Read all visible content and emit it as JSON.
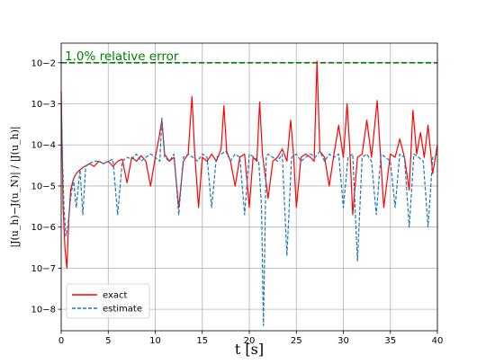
{
  "chart_data": {
    "type": "line",
    "xlabel": "t [s]",
    "ylabel": "|J(u_h)−J(u_N)| / |J(u_h)|",
    "xlim": [
      0,
      40
    ],
    "ylim": [
      3e-09,
      0.03
    ],
    "yscale": "log",
    "grid": true,
    "legend": "lower-left",
    "x_ticks": [
      "0",
      "5",
      "10",
      "15",
      "20",
      "25",
      "30",
      "35",
      "40"
    ],
    "y_ticks": [
      {
        "value": 1e-08,
        "label": "10−8"
      },
      {
        "value": 1e-07,
        "label": "10−7"
      },
      {
        "value": 1e-06,
        "label": "10−6"
      },
      {
        "value": 1e-05,
        "label": "10−5"
      },
      {
        "value": 0.0001,
        "label": "10−4"
      },
      {
        "value": 0.001,
        "label": "10−3"
      },
      {
        "value": 0.01,
        "label": "10−2"
      }
    ],
    "reference_line": {
      "label": "1.0% relative error",
      "y": 0.01,
      "color": "#008000"
    },
    "series": [
      {
        "name": "exact",
        "color": "#ff0000",
        "style": "solid",
        "x": [
          0,
          0.1,
          0.2,
          0.4,
          0.6,
          0.8,
          1.0,
          1.3,
          1.6,
          2.0,
          2.5,
          3.0,
          3.5,
          4.0,
          4.5,
          5.0,
          5.5,
          6.0,
          6.5,
          7.0,
          7.5,
          8.0,
          8.5,
          9.0,
          9.5,
          10.0,
          10.4,
          10.7,
          11.0,
          11.5,
          12.0,
          12.5,
          13.0,
          13.5,
          13.9,
          14.2,
          14.6,
          15.0,
          15.5,
          16.0,
          16.5,
          17.0,
          17.3,
          17.6,
          18.0,
          18.5,
          19.0,
          19.5,
          20.0,
          20.4,
          20.8,
          21.1,
          21.4,
          22.0,
          22.5,
          23.0,
          23.5,
          24.0,
          24.4,
          24.7,
          25.0,
          25.5,
          26.0,
          26.5,
          26.9,
          27.2,
          27.5,
          28.0,
          28.5,
          29.0,
          29.5,
          30.0,
          30.4,
          30.7,
          31.0,
          31.5,
          32.0,
          32.5,
          33.0,
          33.6,
          33.9,
          34.3,
          35.0,
          35.5,
          36.0,
          36.5,
          37.0,
          37.4,
          37.8,
          38.2,
          38.6,
          39.0,
          39.5,
          40.0
        ],
        "y": [
          0.002,
          0.0001,
          3e-06,
          3e-07,
          1e-07,
          1.5e-06,
          8e-06,
          1.5e-05,
          2e-05,
          2.5e-05,
          3e-05,
          3.5e-05,
          3e-05,
          4e-05,
          3.5e-05,
          4e-05,
          3e-05,
          4e-05,
          4.5e-05,
          1.2e-05,
          5e-05,
          4e-05,
          5.5e-05,
          4e-05,
          1e-05,
          5e-05,
          0.00015,
          0.0004,
          6e-05,
          4e-05,
          5e-05,
          3e-06,
          4e-05,
          6e-05,
          0.0015,
          6e-05,
          3e-06,
          5e-05,
          4e-05,
          6e-05,
          4e-05,
          8e-05,
          0.0009,
          7e-05,
          4e-05,
          1e-05,
          5e-05,
          6e-05,
          3e-06,
          5e-05,
          4e-05,
          0.0011,
          6e-05,
          5e-06,
          4e-05,
          5e-05,
          8e-05,
          4e-05,
          0.0004,
          6e-05,
          3e-06,
          5e-05,
          6e-05,
          5e-05,
          4e-05,
          0.011,
          7e-05,
          5e-05,
          1e-05,
          6e-05,
          0.0003,
          5e-05,
          0.001,
          7e-05,
          2e-06,
          5e-05,
          6e-05,
          0.0004,
          5e-05,
          0.0012,
          8e-05,
          3e-06,
          6e-05,
          5e-05,
          0.00014,
          5e-05,
          8e-06,
          0.0007,
          6e-05,
          0.0002,
          5e-05,
          0.0003,
          2e-05,
          0.0001
        ]
      },
      {
        "name": "estimate",
        "color": "#1f77b4",
        "style": "dashed",
        "x": [
          0,
          0.1,
          0.3,
          0.5,
          0.7,
          1.0,
          1.3,
          1.6,
          2.0,
          2.3,
          2.6,
          3.0,
          3.5,
          4.0,
          4.5,
          5.0,
          5.5,
          6.0,
          6.5,
          7.0,
          7.5,
          8.0,
          8.5,
          9.0,
          9.5,
          10.0,
          10.5,
          10.7,
          11.0,
          11.5,
          12.0,
          12.5,
          13.0,
          13.5,
          14.0,
          14.5,
          15.0,
          15.5,
          16.0,
          16.5,
          17.0,
          17.5,
          18.0,
          18.5,
          19.0,
          19.5,
          20.0,
          20.5,
          21.0,
          21.3,
          21.5,
          21.8,
          22.0,
          22.5,
          23.0,
          23.5,
          24.0,
          24.5,
          25.0,
          25.5,
          26.0,
          26.5,
          27.0,
          27.5,
          28.0,
          28.5,
          29.0,
          29.5,
          30.0,
          30.5,
          31.0,
          31.5,
          32.0,
          32.5,
          33.0,
          33.5,
          34.0,
          34.5,
          35.0,
          35.5,
          36.0,
          36.5,
          37.0,
          37.5,
          38.0,
          38.5,
          39.0,
          39.5,
          40.0
        ],
        "y": [
          0.001,
          0.0001,
          3e-06,
          6e-07,
          1e-06,
          5e-06,
          1.5e-05,
          3e-06,
          2.5e-05,
          2e-06,
          3e-05,
          3.5e-05,
          4e-05,
          4e-05,
          3.5e-05,
          4e-05,
          4.5e-05,
          2e-06,
          4e-05,
          5e-05,
          4.5e-05,
          6e-05,
          4e-05,
          5e-05,
          6e-05,
          5e-05,
          4e-05,
          0.00045,
          5e-05,
          4e-05,
          6e-05,
          2e-06,
          5e-05,
          6e-05,
          5e-05,
          4e-05,
          6e-05,
          5e-05,
          3e-06,
          5e-05,
          6e-05,
          7e-05,
          4e-05,
          6e-05,
          5e-05,
          2e-06,
          6e-05,
          5e-05,
          4e-05,
          3e-06,
          4e-09,
          5e-05,
          6e-05,
          5e-05,
          4e-05,
          6e-05,
          2e-07,
          5e-05,
          6e-05,
          4e-05,
          5e-05,
          6e-05,
          5e-05,
          7e-05,
          4e-05,
          6e-05,
          5e-05,
          6e-05,
          3e-06,
          5e-05,
          6e-05,
          1.5e-07,
          5e-05,
          6e-05,
          4e-05,
          2e-06,
          6e-05,
          5e-05,
          4e-05,
          3e-06,
          6e-05,
          5e-05,
          1e-06,
          6e-05,
          5e-05,
          4e-05,
          1e-06,
          5e-05,
          6e-05
        ]
      }
    ]
  }
}
